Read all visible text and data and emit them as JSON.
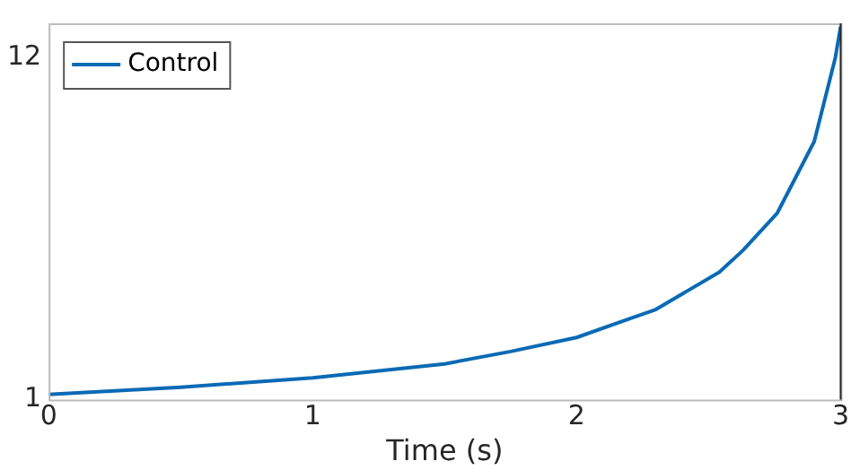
{
  "chart_data": {
    "type": "line",
    "xlabel": "Time (s)",
    "series": [
      {
        "name": "Control",
        "color": "#0a6ab5",
        "x": [
          0,
          0.5,
          1,
          1.5,
          1.75,
          2,
          2.2,
          2.3,
          2.54,
          2.63,
          2.76,
          2.9,
          2.98,
          3
        ],
        "values": [
          1.17,
          1.4,
          1.7,
          2.15,
          2.55,
          3.0,
          3.6,
          3.9,
          5.1,
          5.8,
          7.0,
          9.3,
          12.0,
          13.0
        ]
      }
    ],
    "xlim": [
      0,
      3
    ],
    "xticks": [
      0,
      1,
      2,
      3
    ],
    "ylim": [
      1,
      13.1
    ],
    "yticks": [
      1,
      12
    ],
    "grid": false,
    "legend": "top left",
    "marker": "none",
    "line_style": "solid"
  }
}
